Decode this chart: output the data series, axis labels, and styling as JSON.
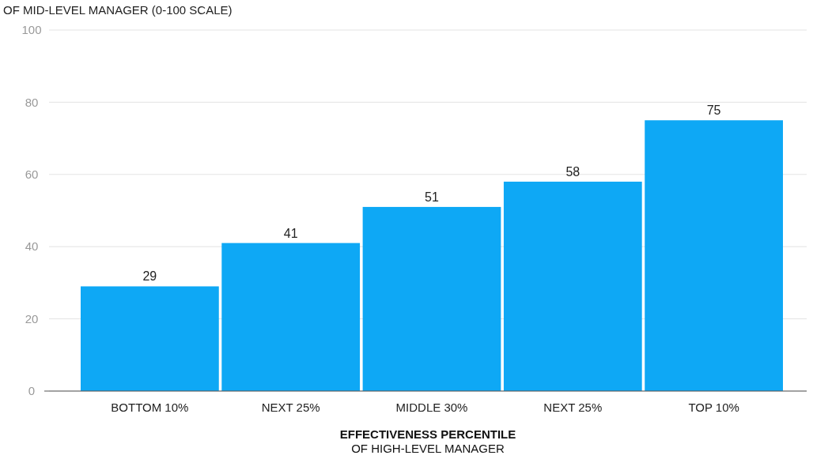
{
  "chart_data": {
    "type": "bar",
    "ylabel": "OF MID-LEVEL MANAGER (0-100 SCALE)",
    "xlabel": "EFFECTIVENESS PERCENTILE\nOF HIGH-LEVEL MANAGER",
    "categories": [
      "BOTTOM 10%",
      "NEXT 25%",
      "MIDDLE 30%",
      "NEXT 25%",
      "TOP 10%"
    ],
    "values": [
      29,
      41,
      51,
      58,
      75
    ],
    "color": "#0ea8f5",
    "ylim": [
      0,
      100
    ],
    "yticks": [
      0,
      20,
      40,
      60,
      80,
      100
    ],
    "grid": "y",
    "data_labels": true
  }
}
